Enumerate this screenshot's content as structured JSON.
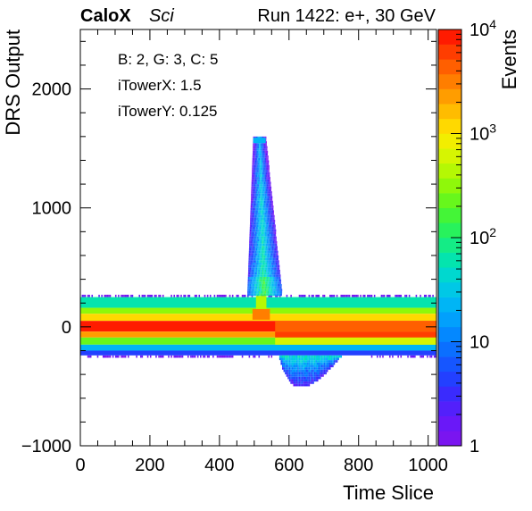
{
  "header": {
    "brand": "CaloX",
    "sub": "Sci",
    "run": "Run 1422: e+, 30 GeV"
  },
  "info_box": {
    "lines": [
      "B: 2, G: 3, C: 5",
      "iTowerX: 1.5",
      "iTowerY: 0.125"
    ]
  },
  "chart_data": {
    "type": "heatmap",
    "title": "",
    "xlabel": "Time Slice",
    "ylabel": "DRS Output",
    "zlabel": "Events",
    "xlim": [
      0,
      1024
    ],
    "ylim": [
      -1000,
      2500
    ],
    "zlim": [
      1,
      10000
    ],
    "z_log": true,
    "x_ticks": [
      0,
      200,
      400,
      600,
      800,
      1000
    ],
    "x_tick_labels": [
      "0",
      "200",
      "400",
      "600",
      "800",
      "1000"
    ],
    "y_ticks": [
      -1000,
      0,
      1000,
      2000
    ],
    "y_tick_labels": [
      "−1000",
      "0",
      "1000",
      "2000"
    ],
    "z_tick_labels": [
      {
        "value": 1,
        "base": "1",
        "exp": ""
      },
      {
        "value": 10,
        "base": "10",
        "exp": ""
      },
      {
        "value": 100,
        "base": "10",
        "exp": "2"
      },
      {
        "value": 1000,
        "base": "10",
        "exp": "3"
      },
      {
        "value": 10000,
        "base": "10",
        "exp": "4"
      }
    ],
    "palette": [
      "#7a15f0",
      "#6a18f8",
      "#5320fb",
      "#3a2bfd",
      "#2340ff",
      "#1656ff",
      "#0b6fff",
      "#0488ff",
      "#02a0fc",
      "#00b5f5",
      "#00c8e6",
      "#00d8cf",
      "#04e4ae",
      "#14ec86",
      "#28f25c",
      "#44f537",
      "#67f71c",
      "#8ff80a",
      "#b5f804",
      "#d6f502",
      "#f2ee00",
      "#ffd900",
      "#ffbc00",
      "#ff9d00",
      "#ff7e00",
      "#ff5f00",
      "#ff3d00",
      "#ff1b00"
    ],
    "pulse": {
      "peak_time": 515,
      "top_adc": 1590,
      "apex_halfwidth": 18,
      "base_start": 480,
      "base_end": 580,
      "undershoot_start": 560,
      "undershoot_end": 820,
      "undershoot_depth": -500
    },
    "pedestal_bands": [
      {
        "y0": 160,
        "y1": 250,
        "level": 12
      },
      {
        "y0": 110,
        "y1": 160,
        "level": 17
      },
      {
        "y0": 50,
        "y1": 110,
        "level": 21
      },
      {
        "y0": -40,
        "y1": 50,
        "level": 27
      },
      {
        "y0": -90,
        "y1": -40,
        "level": 23
      },
      {
        "y0": -150,
        "y1": -90,
        "level": 16
      },
      {
        "y0": -200,
        "y1": -150,
        "level": 9
      },
      {
        "y0": -240,
        "y1": -200,
        "level": 4
      }
    ]
  }
}
